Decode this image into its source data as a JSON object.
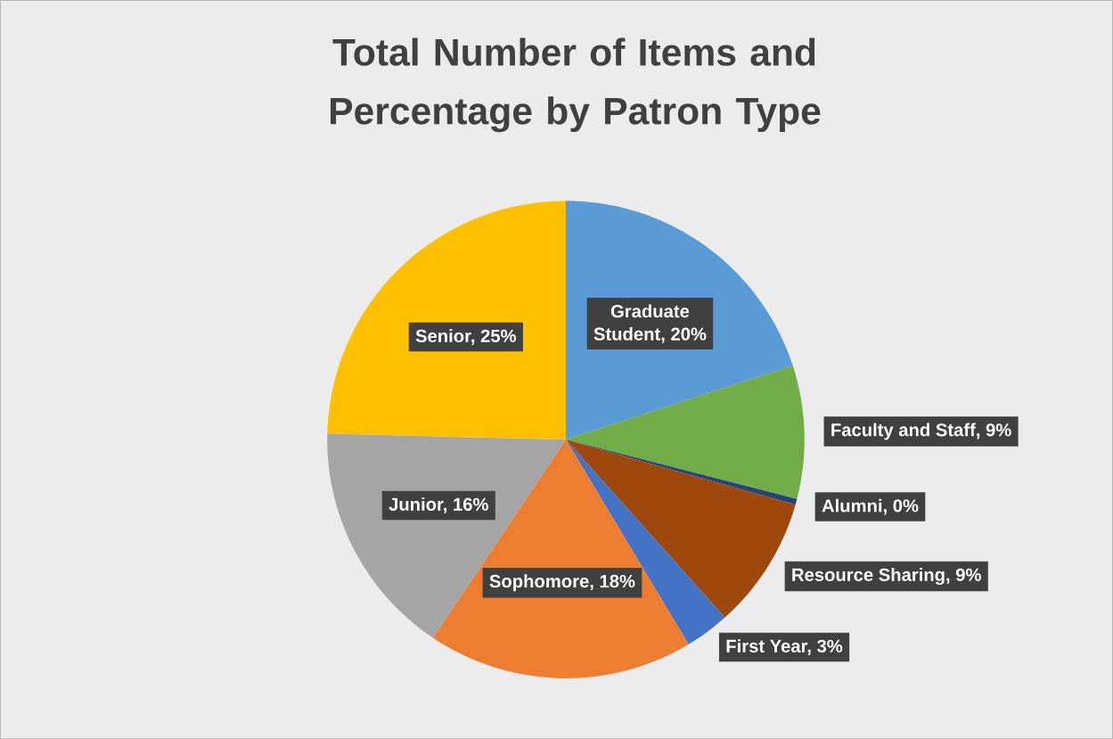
{
  "chart_data": {
    "type": "pie",
    "title": "Total Number of Items and Percentage by Patron Type",
    "categories": [
      "Graduate Student, 20%",
      "Faculty and Staff, 9%",
      "Alumni, 0%",
      "Resource Sharing, 9%",
      "First Year, 3%",
      "Sophomore, 18%",
      "Junior, 16%",
      "Senior, 25%"
    ],
    "values": [
      20,
      9,
      0.4,
      9,
      3,
      18,
      16,
      24.6
    ],
    "colors": [
      "#5b9bd5",
      "#70ad47",
      "#264478",
      "#9e480e",
      "#4472c4",
      "#ed7d31",
      "#a5a5a5",
      "#ffc000"
    ]
  }
}
